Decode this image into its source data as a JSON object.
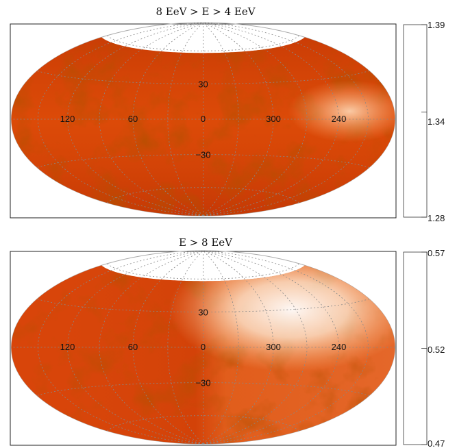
{
  "chart_data": [
    {
      "type": "heatmap",
      "title": "8 EeV > E > 4 EeV",
      "projection": "Hammer-Aitoff sky map",
      "longitude_labels": [
        "120",
        "60",
        "0",
        "300",
        "240"
      ],
      "longitude_values": [
        120,
        60,
        0,
        300,
        240
      ],
      "latitude_labels": [
        "30",
        "−30"
      ],
      "latitude_values": [
        30,
        -30
      ],
      "colorbar": {
        "min_label": "1.28",
        "mid_label": "1.34",
        "max_label": "1.39",
        "min": 1.28,
        "mid": 1.34,
        "max": 1.39,
        "colors": [
          "#fff1d6",
          "#ffcf8c",
          "#ff8c00",
          "#e8500a",
          "#d52c00",
          "#b81300",
          "#8e0000"
        ]
      }
    },
    {
      "type": "heatmap",
      "title": "E > 8 EeV",
      "projection": "Hammer-Aitoff sky map",
      "longitude_labels": [
        "120",
        "60",
        "0",
        "300",
        "240"
      ],
      "longitude_values": [
        120,
        60,
        0,
        300,
        240
      ],
      "latitude_labels": [
        "30",
        "−30"
      ],
      "latitude_values": [
        30,
        -30
      ],
      "colorbar": {
        "min_label": "0.47",
        "mid_label": "0.52",
        "max_label": "0.57",
        "min": 0.47,
        "mid": 0.52,
        "max": 0.57,
        "colors": [
          "#fff1d6",
          "#ffcf8c",
          "#ff8c00",
          "#e8500a",
          "#d52c00",
          "#b81300",
          "#8e0000"
        ]
      }
    }
  ]
}
